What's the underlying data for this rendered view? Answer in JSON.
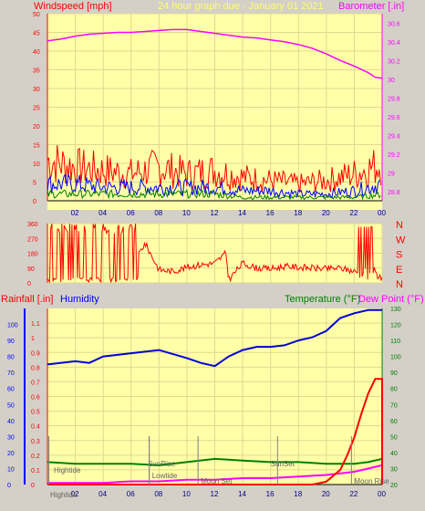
{
  "header": {
    "left_label": "Windspeed [mph]",
    "center_label": "24 hour graph due - January 01 2021",
    "right_label": "Barometer [.in]"
  },
  "lower_header": {
    "rainfall_label": "Rainfall [.in]",
    "humidity_label": "Humidity",
    "temperature_label": "Temperature (°F)",
    "dewpoint_label": "Dew Point (°F)"
  },
  "colors": {
    "panel_bg": "#ffffa8",
    "frame": "#d4d0c8",
    "wind_red": "#ff0000",
    "wind_blue": "#0000ff",
    "wind_green": "#008000",
    "barometer": "#ff00ff",
    "humidity": "#0000dd",
    "temperature": "#008000",
    "dewpoint": "#ff00ff",
    "rain": "#ff0000"
  },
  "chart_data": [
    {
      "type": "line",
      "title": "24 hour graph due - January 01 2021",
      "x_ticks": [
        "02",
        "04",
        "06",
        "08",
        "10",
        "12",
        "14",
        "16",
        "18",
        "20",
        "22",
        "00"
      ],
      "ylabel_left": "Windspeed [mph]",
      "ylim_left": [
        0,
        50
      ],
      "yticks_left": [
        "0",
        "5",
        "10",
        "15",
        "20",
        "25",
        "30",
        "35",
        "40",
        "45",
        "50"
      ],
      "ylabel_right": "Barometer [.in]",
      "ylim_right": [
        28.7,
        30.7
      ],
      "yticks_right": [
        "28.8",
        "29",
        "29.2",
        "29.4",
        "29.6",
        "29.8",
        "30",
        "30.2",
        "30.4",
        "30.6"
      ],
      "series": [
        {
          "name": "Barometer",
          "axis": "right",
          "x": [
            0,
            1,
            2,
            3,
            4,
            5,
            6,
            7,
            8,
            9,
            10,
            11,
            12,
            13,
            14,
            15,
            16,
            17,
            18,
            19,
            20,
            21,
            22,
            23,
            23.5,
            24
          ],
          "values": [
            30.41,
            30.43,
            30.46,
            30.48,
            30.49,
            30.5,
            30.5,
            30.51,
            30.52,
            30.53,
            30.53,
            30.51,
            30.49,
            30.47,
            30.45,
            30.44,
            30.42,
            30.4,
            30.37,
            30.33,
            30.27,
            30.2,
            30.14,
            30.07,
            30.02,
            30.01
          ]
        },
        {
          "name": "Gust",
          "axis": "left",
          "x": [
            0,
            2,
            4,
            6,
            8,
            10,
            12,
            14,
            16,
            18,
            20,
            22,
            24
          ],
          "values": [
            12,
            10,
            9,
            8,
            10,
            8,
            9,
            7,
            6,
            5,
            6,
            8,
            11
          ]
        },
        {
          "name": "Average",
          "axis": "left",
          "x": [
            0,
            2,
            4,
            6,
            8,
            10,
            12,
            14,
            16,
            18,
            20,
            22,
            24
          ],
          "values": [
            5,
            5,
            4,
            4,
            4,
            4,
            4,
            3,
            3,
            2,
            2,
            3,
            5
          ]
        },
        {
          "name": "Wind low",
          "axis": "left",
          "x": [
            0,
            2,
            4,
            6,
            8,
            10,
            12,
            14,
            16,
            18,
            20,
            22,
            24
          ],
          "values": [
            2,
            2,
            2,
            2,
            2,
            2,
            2,
            1,
            1,
            1,
            1,
            1,
            2
          ]
        }
      ]
    },
    {
      "type": "line",
      "x_ticks": [
        "02",
        "04",
        "06",
        "08",
        "10",
        "12",
        "14",
        "16",
        "18",
        "20",
        "22",
        "00"
      ],
      "ylim": [
        0,
        360
      ],
      "yticks_left": [
        "0",
        "90",
        "180",
        "270",
        "360"
      ],
      "yticks_right": [
        "N",
        "E",
        "S",
        "W",
        "N"
      ],
      "series": [
        {
          "name": "Wind direction",
          "x": [
            0,
            6.5,
            7,
            8,
            9,
            10,
            11,
            12,
            12.8,
            13,
            14,
            15,
            16,
            17,
            18,
            19,
            20,
            21,
            22,
            23,
            24
          ],
          "values": [
            180,
            170,
            240,
            80,
            70,
            95,
            110,
            120,
            180,
            20,
            120,
            90,
            85,
            100,
            95,
            90,
            85,
            90,
            70,
            40,
            30
          ]
        }
      ]
    },
    {
      "type": "line",
      "x_ticks": [
        "02",
        "04",
        "06",
        "08",
        "10",
        "12",
        "14",
        "16",
        "18",
        "20",
        "22",
        "00"
      ],
      "rain_ylabel": "Rainfall [.in]",
      "rain_ticks": [
        "0",
        "0.1",
        "0.2",
        "0.3",
        "0.4",
        "0.5",
        "0.6",
        "0.7",
        "0.8",
        "0.9",
        "1",
        "1.1"
      ],
      "rain_ylim": [
        0,
        1.2
      ],
      "humidity_ticks": [
        "0",
        "10",
        "20",
        "30",
        "40",
        "50",
        "60",
        "70",
        "80",
        "90",
        "100"
      ],
      "humidity_ylim": [
        0,
        100
      ],
      "temp_ticks": [
        "20",
        "30",
        "40",
        "50",
        "60",
        "70",
        "80",
        "90",
        "100",
        "110",
        "120",
        "130"
      ],
      "temp_ylim": [
        20,
        130
      ],
      "annotations": [
        "Hightide",
        "Hightide",
        "SunRise",
        "Lowtide",
        "Moon Set",
        "SunSet",
        "Moon Rise"
      ],
      "series": [
        {
          "name": "Humidity",
          "axis": "humidity",
          "x": [
            0,
            2,
            3,
            4,
            5,
            6,
            8,
            10,
            11,
            12,
            13,
            14,
            15,
            16,
            17,
            18,
            19,
            20,
            21,
            22,
            23,
            24
          ],
          "values": [
            75,
            77,
            76,
            80,
            81,
            82,
            84,
            79,
            76,
            74,
            80,
            84,
            86,
            86,
            87,
            90,
            92,
            96,
            104,
            107,
            109,
            109
          ]
        },
        {
          "name": "Temperature",
          "axis": "temp",
          "x": [
            0,
            2,
            4,
            6,
            8,
            10,
            12,
            14,
            16,
            18,
            20,
            22,
            23,
            24
          ],
          "values": [
            34,
            33,
            33,
            33,
            32,
            34,
            36,
            35,
            34,
            34,
            33,
            33,
            34,
            36
          ]
        },
        {
          "name": "Dew Point",
          "axis": "temp",
          "x": [
            0,
            2,
            4,
            6,
            8,
            10,
            12,
            14,
            16,
            18,
            20,
            22,
            23,
            24
          ],
          "values": [
            21,
            21,
            21,
            22,
            22,
            23,
            23,
            24,
            24,
            25,
            26,
            28,
            30,
            32
          ]
        },
        {
          "name": "Rainfall",
          "axis": "rain",
          "x": [
            0,
            19,
            20,
            21,
            21.5,
            22,
            22.5,
            23,
            23.5,
            23.9,
            24
          ],
          "values": [
            0,
            0,
            0.02,
            0.1,
            0.2,
            0.32,
            0.48,
            0.62,
            0.72,
            0.72,
            0.72
          ]
        }
      ]
    }
  ]
}
